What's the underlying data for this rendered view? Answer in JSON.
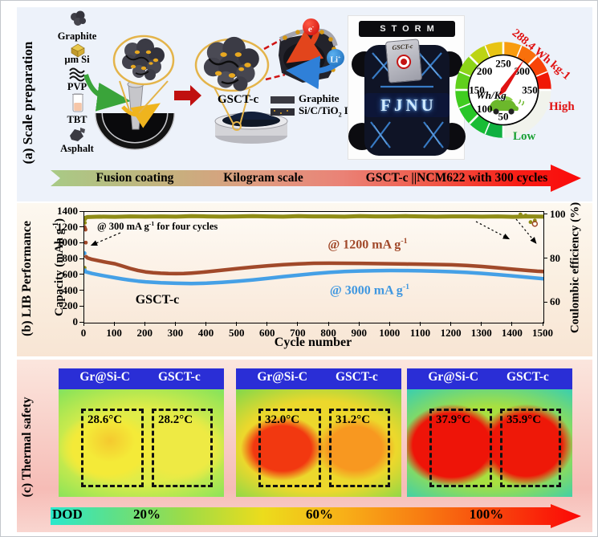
{
  "panels": {
    "a": {
      "label": "(a)  Scale preparation",
      "materials": [
        {
          "name": "Graphite"
        },
        {
          "name": "µm Si"
        },
        {
          "name": "PVP"
        },
        {
          "name": "TBT"
        },
        {
          "name": "Asphalt"
        }
      ],
      "product_label": "GSCT-c",
      "legend": [
        {
          "label": "Graphite"
        },
        {
          "label_html": "Si/C/TiO<sub>2</sub> Layer"
        }
      ],
      "electron_html": "e<sup>-</sup>",
      "ion_html": "Li<sup>+</sup>",
      "car_photo": {
        "spoiler_text": "STORM",
        "battery_label": "GSCT-c",
        "led_text": "FJNU"
      },
      "gauge": {
        "value": 288.4,
        "min": 50,
        "max": 350,
        "ticks": [
          50,
          100,
          150,
          200,
          250,
          300,
          350
        ],
        "unit": "Wh/Kg",
        "value_label": "288.4 Wh kg-1",
        "high_label": "High",
        "low_label": "Low",
        "ring_colors": [
          "#10b040",
          "#18bc34",
          "#28c628",
          "#40cc20",
          "#60d01c",
          "#8cd418",
          "#bcd414",
          "#e8c414",
          "#f89c10",
          "#f8700c",
          "#f84408",
          "#f01806"
        ],
        "rest_color": "#f1f3ec",
        "needle_color": "#e01212"
      },
      "steps": [
        "Fusion coating",
        "Kilogram scale",
        "GSCT-c ||NCM622 with 300 cycles"
      ]
    },
    "b": {
      "label": "(b)  LIB Performance",
      "chart_data": {
        "type": "line",
        "xlabel": "Cycle number",
        "ylabel_left_html": "Capacity (mAh g<sup>-1</sup>)",
        "ylabel_right": "Coulombic efficiency (%)",
        "xlim": [
          0,
          1500
        ],
        "ylim_left": [
          0,
          1400
        ],
        "x_ticks": [
          0,
          100,
          200,
          300,
          400,
          500,
          600,
          700,
          800,
          900,
          1000,
          1100,
          1200,
          1300,
          1400,
          1500
        ],
        "y_ticks_left": [
          0,
          200,
          400,
          600,
          800,
          1000,
          1200,
          1400
        ],
        "y_ticks_right": [
          60,
          80,
          100
        ],
        "annotations": {
          "initial_html": "@ 300 mA g<sup>-1</sup> for four cycles",
          "rate1200_html": "@ 1200 mA g<sup>-1</sup>",
          "rate3000_html": "@ 3000 mA g<sup>-1</sup>",
          "sample": "GSCT-c"
        },
        "series": [
          {
            "id": "coulombic-efficiency",
            "name": "Coulombic efficiency",
            "axis": "right",
            "color": "#8f8c17",
            "width": 5,
            "head_x": [
              1,
              2,
              3,
              1425,
              1442,
              1458,
              1472
            ],
            "head_y": [
              76,
              96.5,
              98.2,
              100.3,
              99.8,
              96.8,
              97.5
            ],
            "line_x": [
              4,
              10,
              50,
              100,
              150,
              200,
              250,
              300,
              350,
              400,
              450,
              500,
              550,
              600,
              650,
              700,
              750,
              800,
              850,
              900,
              950,
              1000,
              1050,
              1100,
              1150,
              1200,
              1250,
              1300,
              1350,
              1400,
              1450,
              1500
            ],
            "line_y": [
              98.8,
              99.1,
              99.3,
              99.2,
              99.4,
              99.3,
              99.4,
              99.3,
              99.5,
              99.4,
              99.3,
              99.4,
              99.5,
              99.4,
              99.3,
              99.5,
              99.4,
              99.4,
              99.3,
              99.5,
              99.4,
              99.4,
              99.5,
              99.4,
              99.3,
              99.4,
              99.4,
              99.3,
              99.4,
              99.2,
              99.4,
              99.3
            ]
          },
          {
            "id": "capacity-1200",
            "name": "@ 1200 mA g-1",
            "axis": "left",
            "color": "#a1492a",
            "width": 4.5,
            "head_x": [
              1,
              2,
              3,
              4,
              5
            ],
            "head_y": [
              1208,
              1195,
              1185,
              1176,
              1012
            ],
            "line_x": [
              6,
              10,
              25,
              50,
              75,
              100,
              125,
              150,
              175,
              200,
              225,
              250,
              275,
              300,
              325,
              350,
              375,
              400,
              425,
              450,
              475,
              500,
              550,
              600,
              650,
              700,
              750,
              800,
              850,
              900,
              950,
              1000,
              1050,
              1100,
              1150,
              1200,
              1250,
              1300,
              1350,
              1400,
              1450,
              1480,
              1500
            ],
            "line_y": [
              835,
              820,
              800,
              780,
              762,
              745,
              715,
              685,
              660,
              642,
              632,
              625,
              621,
              620,
              622,
              627,
              634,
              643,
              653,
              663,
              674,
              684,
              703,
              719,
              733,
              744,
              751,
              752,
              751,
              750,
              747,
              745,
              742,
              740,
              736,
              731,
              722,
              710,
              694,
              676,
              659,
              650,
              646
            ]
          },
          {
            "id": "capacity-3000",
            "name": "@ 3000 mA g-1",
            "axis": "left",
            "color": "#45a0e6",
            "width": 4.5,
            "head_x": [
              1,
              2
            ],
            "head_y": [
              878,
              662
            ],
            "line_x": [
              3,
              25,
              50,
              75,
              100,
              125,
              150,
              175,
              200,
              250,
              300,
              350,
              400,
              450,
              500,
              550,
              600,
              650,
              700,
              750,
              800,
              850,
              900,
              950,
              1000,
              1050,
              1100,
              1150,
              1200,
              1250,
              1300,
              1350,
              1400,
              1450,
              1500
            ],
            "line_y": [
              645,
              622,
              603,
              585,
              568,
              552,
              538,
              526,
              516,
              504,
              498,
              495,
              499,
              509,
              523,
              541,
              561,
              582,
              602,
              620,
              635,
              646,
              653,
              657,
              659,
              658,
              655,
              650,
              644,
              635,
              623,
              608,
              591,
              573,
              556
            ]
          }
        ],
        "extra_markers": [
          {
            "x": 1472,
            "ce": 96.0,
            "color": "#a1492a"
          }
        ]
      }
    },
    "c": {
      "label": "(c)  Thermal safety",
      "groups": [
        {
          "left_label": "Gr@Si-C",
          "right_label": "GSCT-c",
          "left_temp": "28.6°C",
          "right_temp": "28.2°C"
        },
        {
          "left_label": "Gr@Si-C",
          "right_label": "GSCT-c",
          "left_temp": "32.0°C",
          "right_temp": "31.2°C"
        },
        {
          "left_label": "Gr@Si-C",
          "right_label": "GSCT-c",
          "left_temp": "37.9°C",
          "right_temp": "35.9°C"
        }
      ],
      "dod": {
        "label": "DOD",
        "steps": [
          "20%",
          "60%",
          "100%"
        ]
      }
    }
  }
}
